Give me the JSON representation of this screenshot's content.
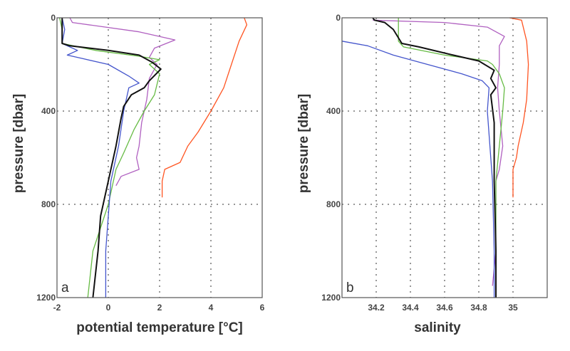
{
  "chart_data": [
    {
      "type": "line",
      "panel_label": "a",
      "xlabel": "potential temperature [°C]",
      "ylabel": "pressure [dbar]",
      "xlim": [
        -2,
        6
      ],
      "ylim": [
        1200,
        0
      ],
      "xticks": [
        "-2",
        "0",
        "2",
        "4",
        "6"
      ],
      "yticks": [
        "0",
        "400",
        "800",
        "1200"
      ],
      "grid": true,
      "series": [
        {
          "name": "orange",
          "color": "#ff5522",
          "points": [
            [
              5.3,
              0
            ],
            [
              5.4,
              30
            ],
            [
              5.1,
              100
            ],
            [
              4.8,
              200
            ],
            [
              4.5,
              300
            ],
            [
              4.0,
              400
            ],
            [
              3.5,
              490
            ],
            [
              3.1,
              550
            ],
            [
              2.8,
              620
            ],
            [
              2.2,
              650
            ],
            [
              2.1,
              700
            ],
            [
              2.1,
              770
            ]
          ]
        },
        {
          "name": "magenta",
          "color": "#b060c0",
          "points": [
            [
              -1.5,
              0
            ],
            [
              -1.4,
              20
            ],
            [
              1.2,
              60
            ],
            [
              2.0,
              80
            ],
            [
              2.6,
              95
            ],
            [
              1.8,
              130
            ],
            [
              1.6,
              170
            ],
            [
              1.9,
              200
            ],
            [
              1.6,
              260
            ],
            [
              1.5,
              350
            ],
            [
              1.3,
              450
            ],
            [
              1.2,
              550
            ],
            [
              1.1,
              600
            ],
            [
              1.2,
              650
            ],
            [
              0.5,
              680
            ],
            [
              0.3,
              720
            ]
          ]
        },
        {
          "name": "green",
          "color": "#66bb44",
          "points": [
            [
              -1.9,
              0
            ],
            [
              -1.8,
              50
            ],
            [
              -1.8,
              110
            ],
            [
              -0.5,
              140
            ],
            [
              1.2,
              165
            ],
            [
              2.0,
              180
            ],
            [
              1.6,
              200
            ],
            [
              2.0,
              240
            ],
            [
              1.8,
              330
            ],
            [
              1.4,
              400
            ],
            [
              1.0,
              480
            ],
            [
              0.6,
              580
            ],
            [
              0.3,
              650
            ],
            [
              0.0,
              800
            ],
            [
              -0.6,
              1000
            ],
            [
              -0.8,
              1200
            ]
          ]
        },
        {
          "name": "blue",
          "color": "#4455cc",
          "points": [
            [
              -1.8,
              0
            ],
            [
              -1.7,
              50
            ],
            [
              -1.8,
              110
            ],
            [
              -1.2,
              140
            ],
            [
              -1.6,
              160
            ],
            [
              -1.0,
              175
            ],
            [
              0.0,
              200
            ],
            [
              0.8,
              250
            ],
            [
              1.2,
              280
            ],
            [
              0.8,
              300
            ],
            [
              0.6,
              400
            ],
            [
              0.4,
              550
            ],
            [
              0.1,
              700
            ],
            [
              0.0,
              850
            ],
            [
              -0.1,
              1000
            ],
            [
              -0.1,
              1200
            ]
          ]
        },
        {
          "name": "black",
          "color": "#111111",
          "points": [
            [
              -1.8,
              0
            ],
            [
              -1.8,
              50
            ],
            [
              -1.8,
              110
            ],
            [
              -1.5,
              120
            ],
            [
              0.0,
              140
            ],
            [
              1.2,
              160
            ],
            [
              1.7,
              190
            ],
            [
              2.05,
              220
            ],
            [
              1.6,
              270
            ],
            [
              1.4,
              300
            ],
            [
              0.9,
              330
            ],
            [
              0.6,
              380
            ],
            [
              0.5,
              430
            ],
            [
              0.3,
              550
            ],
            [
              0.0,
              700
            ],
            [
              -0.3,
              850
            ],
            [
              -0.4,
              1000
            ],
            [
              -0.5,
              1100
            ],
            [
              -0.6,
              1200
            ]
          ]
        }
      ]
    },
    {
      "type": "line",
      "panel_label": "b",
      "xlabel": "salinity",
      "ylabel": "pressure [dbar]",
      "xlim": [
        34.0,
        35.2
      ],
      "ylim": [
        1200,
        0
      ],
      "xticks": [
        "34.2",
        "34.4",
        "34.6",
        "34.8",
        "35"
      ],
      "yticks": [
        "0",
        "400",
        "800",
        "1200"
      ],
      "grid": true,
      "series": [
        {
          "name": "orange",
          "color": "#ff5522",
          "points": [
            [
              34.98,
              0
            ],
            [
              35.05,
              10
            ],
            [
              35.08,
              100
            ],
            [
              35.09,
              200
            ],
            [
              35.08,
              350
            ],
            [
              35.06,
              450
            ],
            [
              35.03,
              550
            ],
            [
              35.02,
              600
            ],
            [
              35.0,
              650
            ],
            [
              35.0,
              770
            ]
          ]
        },
        {
          "name": "magenta",
          "color": "#b060c0",
          "points": [
            [
              34.18,
              10
            ],
            [
              34.6,
              20
            ],
            [
              34.85,
              40
            ],
            [
              34.95,
              80
            ],
            [
              34.92,
              120
            ],
            [
              34.92,
              200
            ],
            [
              34.91,
              300
            ],
            [
              34.92,
              400
            ],
            [
              34.94,
              550
            ],
            [
              34.92,
              650
            ],
            [
              34.9,
              700
            ],
            [
              34.9,
              1000
            ],
            [
              34.88,
              1150
            ]
          ]
        },
        {
          "name": "green",
          "color": "#66bb44",
          "points": [
            [
              34.33,
              0
            ],
            [
              34.33,
              100
            ],
            [
              34.36,
              125
            ],
            [
              34.6,
              160
            ],
            [
              34.85,
              185
            ],
            [
              34.88,
              200
            ],
            [
              34.92,
              240
            ],
            [
              34.95,
              300
            ],
            [
              34.94,
              400
            ],
            [
              34.92,
              550
            ],
            [
              34.9,
              700
            ],
            [
              34.9,
              1000
            ],
            [
              34.9,
              1200
            ]
          ]
        },
        {
          "name": "blue",
          "color": "#4455cc",
          "points": [
            [
              34.0,
              100
            ],
            [
              34.15,
              120
            ],
            [
              34.3,
              160
            ],
            [
              34.5,
              200
            ],
            [
              34.7,
              240
            ],
            [
              34.82,
              270
            ],
            [
              34.86,
              300
            ],
            [
              34.85,
              400
            ],
            [
              34.86,
              500
            ],
            [
              34.88,
              700
            ],
            [
              34.89,
              1000
            ],
            [
              34.89,
              1200
            ]
          ]
        },
        {
          "name": "black",
          "color": "#111111",
          "points": [
            [
              34.18,
              0
            ],
            [
              34.19,
              10
            ],
            [
              34.25,
              20
            ],
            [
              34.3,
              50
            ],
            [
              34.35,
              110
            ],
            [
              34.45,
              125
            ],
            [
              34.65,
              160
            ],
            [
              34.8,
              185
            ],
            [
              34.89,
              225
            ],
            [
              34.87,
              260
            ],
            [
              34.9,
              300
            ],
            [
              34.87,
              330
            ],
            [
              34.88,
              390
            ],
            [
              34.89,
              450
            ],
            [
              34.89,
              700
            ],
            [
              34.9,
              1000
            ],
            [
              34.9,
              1200
            ]
          ]
        }
      ]
    }
  ]
}
